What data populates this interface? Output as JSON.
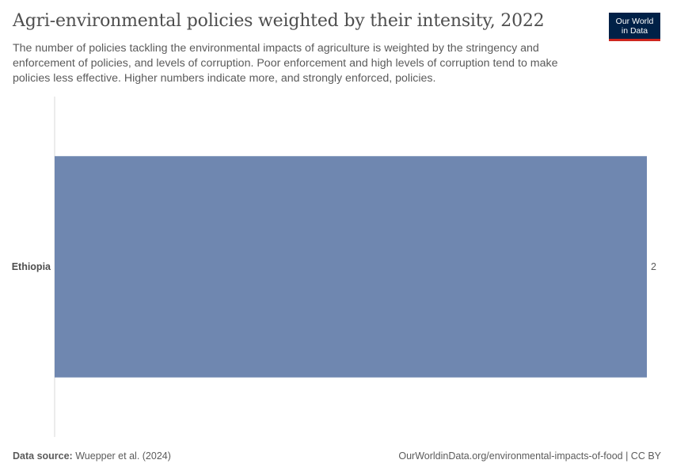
{
  "header": {
    "title": "Agri-environmental policies weighted by their intensity, 2022",
    "subtitle": "The number of policies tackling the environmental impacts of agriculture is weighted by the stringency and enforcement of policies, and levels of corruption. Poor enforcement and high levels of corruption tend to make policies less effective. Higher numbers indicate more, and strongly enforced, policies."
  },
  "logo": {
    "line1": "Our World",
    "line2": "in Data"
  },
  "footer": {
    "source_label": "Data source:",
    "source_text": "Wuepper et al. (2024)",
    "url": "OurWorldinData.org/environmental-impacts-of-food | CC BY"
  },
  "colors": {
    "bar": "#6f87b0",
    "axis": "#d9d9d9"
  },
  "chart_data": {
    "type": "bar",
    "orientation": "horizontal",
    "title": "Agri-environmental policies weighted by their intensity, 2022",
    "categories": [
      "Ethiopia"
    ],
    "values": [
      2
    ],
    "value_labels": [
      "2"
    ],
    "xlim": [
      0,
      2
    ],
    "grid": false
  }
}
